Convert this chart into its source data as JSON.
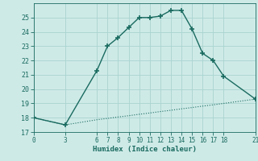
{
  "xlabel": "Humidex (Indice chaleur)",
  "background_color": "#ceeae7",
  "grid_color": "#aad4d0",
  "line_color": "#1a6b60",
  "xlim": [
    0,
    21
  ],
  "ylim": [
    17,
    26
  ],
  "xticks": [
    0,
    3,
    6,
    7,
    8,
    9,
    10,
    11,
    12,
    13,
    14,
    15,
    16,
    17,
    18,
    21
  ],
  "yticks": [
    17,
    18,
    19,
    20,
    21,
    22,
    23,
    24,
    25
  ],
  "main_x": [
    0,
    3,
    6,
    7,
    8,
    9,
    10,
    11,
    12,
    13,
    14,
    15,
    16,
    17,
    18,
    21
  ],
  "main_y": [
    18.0,
    17.5,
    21.3,
    23.0,
    23.6,
    24.3,
    25.0,
    25.0,
    25.1,
    25.5,
    25.5,
    24.2,
    22.5,
    22.0,
    20.9,
    19.3
  ],
  "baseline_x": [
    0,
    3,
    6,
    7,
    8,
    9,
    10,
    11,
    12,
    13,
    14,
    15,
    16,
    17,
    18,
    21
  ],
  "baseline_y": [
    18.0,
    17.5,
    17.86,
    17.95,
    18.05,
    18.14,
    18.24,
    18.33,
    18.43,
    18.52,
    18.62,
    18.71,
    18.81,
    18.9,
    19.0,
    19.3
  ],
  "font_family": "monospace"
}
